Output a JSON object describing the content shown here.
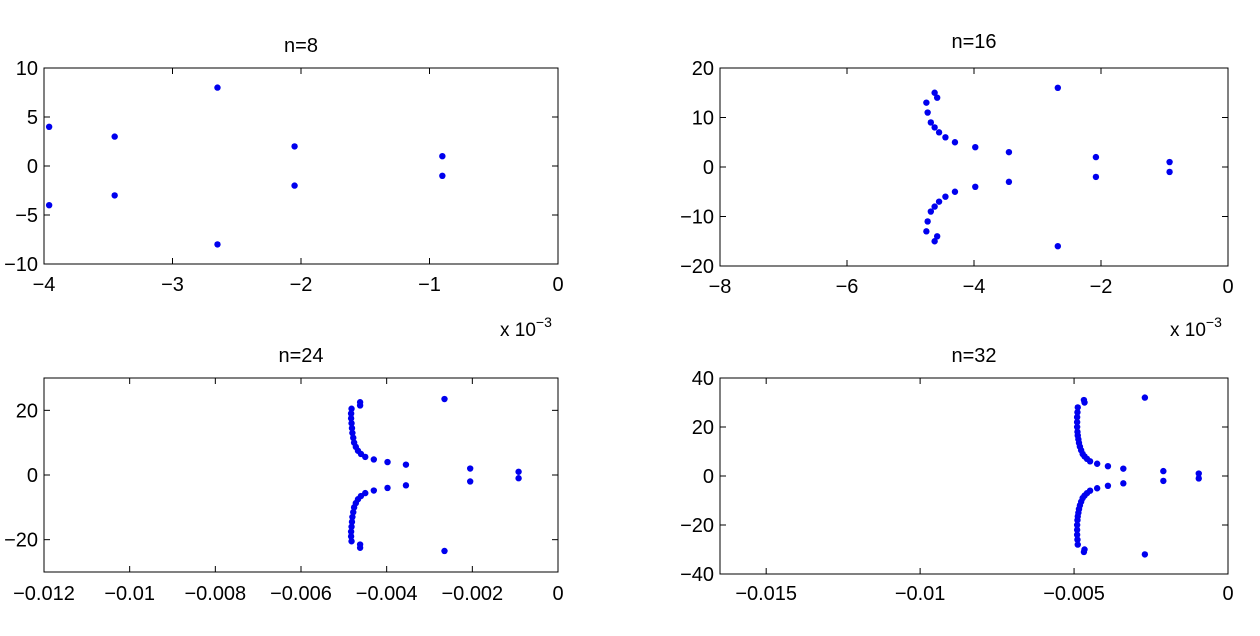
{
  "chart_data": [
    {
      "type": "scatter",
      "title": "n=8",
      "xlim": [
        -0.004,
        0
      ],
      "ylim": [
        -10,
        10
      ],
      "xticks": [
        -0.004,
        -0.003,
        -0.002,
        -0.001,
        0
      ],
      "xtick_labels": [
        "−4",
        "−3",
        "−2",
        "−1",
        "0"
      ],
      "yticks": [
        -10,
        -5,
        0,
        5,
        10
      ],
      "ytick_labels": [
        "−10",
        "−5",
        "0",
        "5",
        "10"
      ],
      "x_multiplier_label": "x 10",
      "x_multiplier_exp": "−3",
      "grid": false,
      "marker_color": "#0000ee",
      "series": [
        {
          "x": [
            -0.00396,
            -0.00396,
            -0.00345,
            -0.00345,
            -0.00265,
            -0.00265,
            -0.00205,
            -0.00205,
            -0.0009,
            -0.0009
          ],
          "y": [
            4,
            -4,
            3,
            -3,
            8,
            -8,
            2,
            -2,
            1,
            -1
          ]
        }
      ]
    },
    {
      "type": "scatter",
      "title": "n=16",
      "xlim": [
        -0.008,
        0
      ],
      "ylim": [
        -20,
        20
      ],
      "xticks": [
        -0.008,
        -0.006,
        -0.004,
        -0.002,
        0
      ],
      "xtick_labels": [
        "−8",
        "−6",
        "−4",
        "−2",
        "0"
      ],
      "yticks": [
        -20,
        -10,
        0,
        10,
        20
      ],
      "ytick_labels": [
        "−20",
        "−10",
        "0",
        "10",
        "20"
      ],
      "x_multiplier_label": "x 10",
      "x_multiplier_exp": "−3",
      "grid": false,
      "marker_color": "#0000ee",
      "series": [
        {
          "x": [
            -0.00475,
            -0.00473,
            -0.00468,
            -0.00462,
            -0.00455,
            -0.00445,
            -0.0043,
            -0.00398,
            -0.00345,
            -0.00268,
            -0.00208,
            -0.00092,
            -0.00462,
            -0.00458,
            -0.00475,
            -0.00473,
            -0.00468,
            -0.00462,
            -0.00455,
            -0.00445,
            -0.0043,
            -0.00398,
            -0.00345,
            -0.00268,
            -0.00208,
            -0.00092,
            -0.00462,
            -0.00458
          ],
          "y": [
            13,
            11,
            9,
            8,
            7,
            6,
            5,
            4,
            3,
            16,
            2,
            1,
            15,
            14,
            -13,
            -11,
            -9,
            -8,
            -7,
            -6,
            -5,
            -4,
            -3,
            -16,
            -2,
            -1,
            -15,
            -14
          ]
        }
      ]
    },
    {
      "type": "scatter",
      "title": "n=24",
      "xlim": [
        -0.012,
        0
      ],
      "ylim": [
        -30,
        30
      ],
      "xticks": [
        -0.012,
        -0.01,
        -0.008,
        -0.006,
        -0.004,
        -0.002,
        0
      ],
      "xtick_labels": [
        "−0.012",
        "−0.01",
        "−0.008",
        "−0.006",
        "−0.004",
        "−0.002",
        "0"
      ],
      "yticks": [
        -20,
        0,
        20
      ],
      "ytick_labels": [
        "−20",
        "0",
        "20"
      ],
      "grid": false,
      "marker_color": "#0000ee",
      "series": [
        {
          "x": [
            -0.00482,
            -0.00483,
            -0.00483,
            -0.00482,
            -0.00481,
            -0.0048,
            -0.00478,
            -0.00476,
            -0.00472,
            -0.00467,
            -0.0046,
            -0.0045,
            -0.0043,
            -0.00398,
            -0.00355,
            -0.00265,
            -0.00205,
            -0.00092,
            -0.00462,
            -0.00462,
            -0.00482,
            -0.00483,
            -0.00483,
            -0.00482,
            -0.00481,
            -0.0048,
            -0.00478,
            -0.00476,
            -0.00472,
            -0.00467,
            -0.0046,
            -0.0045,
            -0.0043,
            -0.00398,
            -0.00355,
            -0.00265,
            -0.00205,
            -0.00092,
            -0.00462,
            -0.00462
          ],
          "y": [
            20.5,
            19,
            17.5,
            16,
            14.5,
            13,
            11.5,
            10,
            8.7,
            7.5,
            6.5,
            5.6,
            4.8,
            4,
            3.2,
            23.5,
            2,
            1,
            22.5,
            21.5,
            -20.5,
            -19,
            -17.5,
            -16,
            -14.5,
            -13,
            -11.5,
            -10,
            -8.7,
            -7.5,
            -6.5,
            -5.6,
            -4.8,
            -4,
            -3.2,
            -23.5,
            -2,
            -1,
            -22.5,
            -21.5
          ]
        }
      ]
    },
    {
      "type": "scatter",
      "title": "n=32",
      "xlim": [
        -0.0165,
        0
      ],
      "ylim": [
        -40,
        40
      ],
      "xticks": [
        -0.015,
        -0.01,
        -0.005,
        0
      ],
      "xtick_labels": [
        "−0.015",
        "−0.01",
        "−0.005",
        "0"
      ],
      "yticks": [
        -40,
        -20,
        0,
        20,
        40
      ],
      "ytick_labels": [
        "−40",
        "−20",
        "0",
        "20",
        "40"
      ],
      "grid": false,
      "marker_color": "#0000ee",
      "series": [
        {
          "x": [
            -0.00488,
            -0.00489,
            -0.0049,
            -0.0049,
            -0.0049,
            -0.00489,
            -0.00488,
            -0.00486,
            -0.00484,
            -0.00481,
            -0.00477,
            -0.00472,
            -0.00466,
            -0.00458,
            -0.00448,
            -0.00425,
            -0.0039,
            -0.0034,
            -0.0027,
            -0.0021,
            -0.00095,
            -0.00468,
            -0.00466,
            -0.00488,
            -0.00489,
            -0.0049,
            -0.0049,
            -0.0049,
            -0.00489,
            -0.00488,
            -0.00486,
            -0.00484,
            -0.00481,
            -0.00477,
            -0.00472,
            -0.00466,
            -0.00458,
            -0.00448,
            -0.00425,
            -0.0039,
            -0.0034,
            -0.0027,
            -0.0021,
            -0.00095,
            -0.00468,
            -0.00466
          ],
          "y": [
            28,
            26,
            24,
            22,
            20,
            18,
            16.5,
            15,
            13.5,
            12,
            10.5,
            9,
            8,
            7,
            6,
            5,
            4,
            3,
            32,
            2,
            1,
            31,
            30,
            -28,
            -26,
            -24,
            -22,
            -20,
            -18,
            -16.5,
            -15,
            -13.5,
            -12,
            -10.5,
            -9,
            -8,
            -7,
            -6,
            -5,
            -4,
            -3,
            -32,
            -2,
            -1,
            -31,
            -30
          ]
        }
      ]
    }
  ]
}
